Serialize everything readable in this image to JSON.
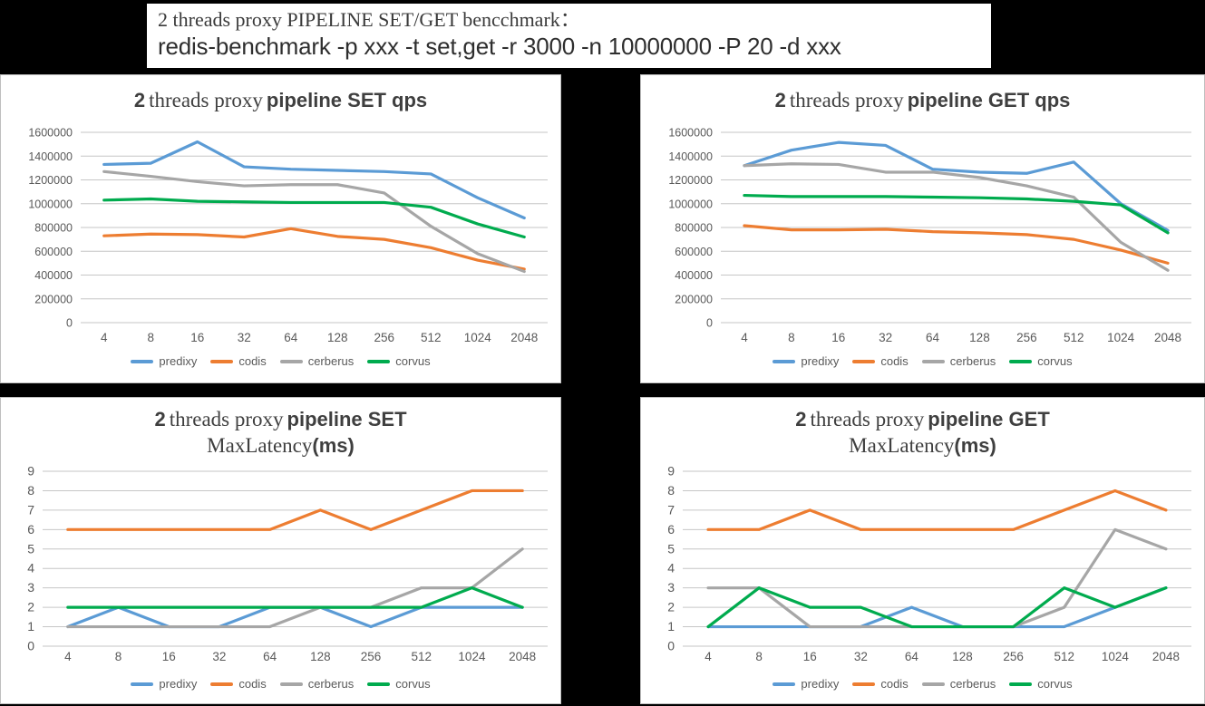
{
  "header": {
    "title": "2 threads proxy PIPELINE SET/GET bencchmark：",
    "command": "redis-benchmark -p xxx -t set,get -r 3000 -n 10000000 -P 20 -d xxx"
  },
  "colors": {
    "predixy": "#5B9BD5",
    "codis": "#ED7D31",
    "cerberus": "#A6A6A6",
    "corvus": "#00AB4E",
    "grid": "#C6C6C6",
    "axis_text": "#595959",
    "title_text": "#3F3F3F"
  },
  "legend_order": [
    "predixy",
    "codis",
    "cerberus",
    "corvus"
  ],
  "chart_data": [
    {
      "id": "set-qps",
      "type": "line",
      "title": "2 threads proxy pipeline SET qps",
      "title_parts": {
        "num": "2",
        "serif": "threads proxy",
        "bold": "pipeline SET qps"
      },
      "categories": [
        "4",
        "8",
        "16",
        "32",
        "64",
        "128",
        "256",
        "512",
        "1024",
        "2048"
      ],
      "xlabel": "",
      "ylabel": "",
      "ylim": [
        0,
        1600000
      ],
      "ytick": 200000,
      "grid": true,
      "legend_position": "bottom",
      "series": [
        {
          "name": "predixy",
          "values": [
            1330000,
            1340000,
            1520000,
            1310000,
            1290000,
            1280000,
            1270000,
            1250000,
            1050000,
            880000
          ]
        },
        {
          "name": "codis",
          "values": [
            730000,
            745000,
            740000,
            720000,
            790000,
            725000,
            700000,
            630000,
            525000,
            450000
          ]
        },
        {
          "name": "cerberus",
          "values": [
            1270000,
            1230000,
            1185000,
            1150000,
            1160000,
            1160000,
            1090000,
            810000,
            580000,
            430000
          ]
        },
        {
          "name": "corvus",
          "values": [
            1030000,
            1040000,
            1020000,
            1015000,
            1010000,
            1010000,
            1010000,
            970000,
            830000,
            720000
          ]
        }
      ]
    },
    {
      "id": "get-qps",
      "type": "line",
      "title": "2 threads proxy pipeline GET qps",
      "title_parts": {
        "num": "2",
        "serif": "threads proxy",
        "bold": "pipeline GET qps"
      },
      "categories": [
        "4",
        "8",
        "16",
        "32",
        "64",
        "128",
        "256",
        "512",
        "1024",
        "2048"
      ],
      "xlabel": "",
      "ylabel": "",
      "ylim": [
        0,
        1600000
      ],
      "ytick": 200000,
      "grid": true,
      "legend_position": "bottom",
      "series": [
        {
          "name": "predixy",
          "values": [
            1320000,
            1450000,
            1515000,
            1490000,
            1290000,
            1265000,
            1255000,
            1350000,
            1000000,
            775000
          ]
        },
        {
          "name": "codis",
          "values": [
            815000,
            780000,
            780000,
            785000,
            765000,
            755000,
            740000,
            700000,
            610000,
            500000
          ]
        },
        {
          "name": "cerberus",
          "values": [
            1320000,
            1335000,
            1330000,
            1265000,
            1265000,
            1220000,
            1150000,
            1055000,
            675000,
            440000
          ]
        },
        {
          "name": "corvus",
          "values": [
            1070000,
            1060000,
            1060000,
            1060000,
            1055000,
            1050000,
            1040000,
            1020000,
            990000,
            755000
          ]
        }
      ]
    },
    {
      "id": "set-maxlatency",
      "type": "line",
      "title": "2 threads proxy pipeline SET MaxLatency(ms)",
      "title_parts": {
        "num": "2",
        "serif": "threads proxy",
        "bold": "pipeline SET",
        "line2_serif": "MaxLatency",
        "line2_bold": "(ms)"
      },
      "categories": [
        "4",
        "8",
        "16",
        "32",
        "64",
        "128",
        "256",
        "512",
        "1024",
        "2048"
      ],
      "xlabel": "",
      "ylabel": "",
      "ylim": [
        0,
        9
      ],
      "ytick": 1,
      "grid": true,
      "legend_position": "bottom",
      "series": [
        {
          "name": "predixy",
          "values": [
            1,
            2,
            1,
            1,
            2,
            2,
            1,
            2,
            2,
            2
          ]
        },
        {
          "name": "codis",
          "values": [
            6,
            6,
            6,
            6,
            6,
            7,
            6,
            7,
            8,
            8
          ]
        },
        {
          "name": "cerberus",
          "values": [
            1,
            1,
            1,
            1,
            1,
            2,
            2,
            3,
            3,
            5
          ]
        },
        {
          "name": "corvus",
          "values": [
            2,
            2,
            2,
            2,
            2,
            2,
            2,
            2,
            3,
            2
          ]
        }
      ]
    },
    {
      "id": "get-maxlatency",
      "type": "line",
      "title": "2 threads proxy pipeline GET MaxLatency(ms)",
      "title_parts": {
        "num": "2",
        "serif": "threads proxy",
        "bold": "pipeline GET",
        "line2_serif": "MaxLatency",
        "line2_bold": "(ms)"
      },
      "categories": [
        "4",
        "8",
        "16",
        "32",
        "64",
        "128",
        "256",
        "512",
        "1024",
        "2048"
      ],
      "xlabel": "",
      "ylabel": "",
      "ylim": [
        0,
        9
      ],
      "ytick": 1,
      "grid": true,
      "legend_position": "bottom",
      "series": [
        {
          "name": "predixy",
          "values": [
            1,
            1,
            1,
            1,
            2,
            1,
            1,
            1,
            2,
            3
          ]
        },
        {
          "name": "codis",
          "values": [
            6,
            6,
            7,
            6,
            6,
            6,
            6,
            7,
            8,
            7
          ]
        },
        {
          "name": "cerberus",
          "values": [
            3,
            3,
            1,
            1,
            1,
            1,
            1,
            2,
            6,
            5
          ]
        },
        {
          "name": "corvus",
          "values": [
            1,
            3,
            2,
            2,
            1,
            1,
            1,
            3,
            2,
            3
          ]
        }
      ]
    }
  ]
}
